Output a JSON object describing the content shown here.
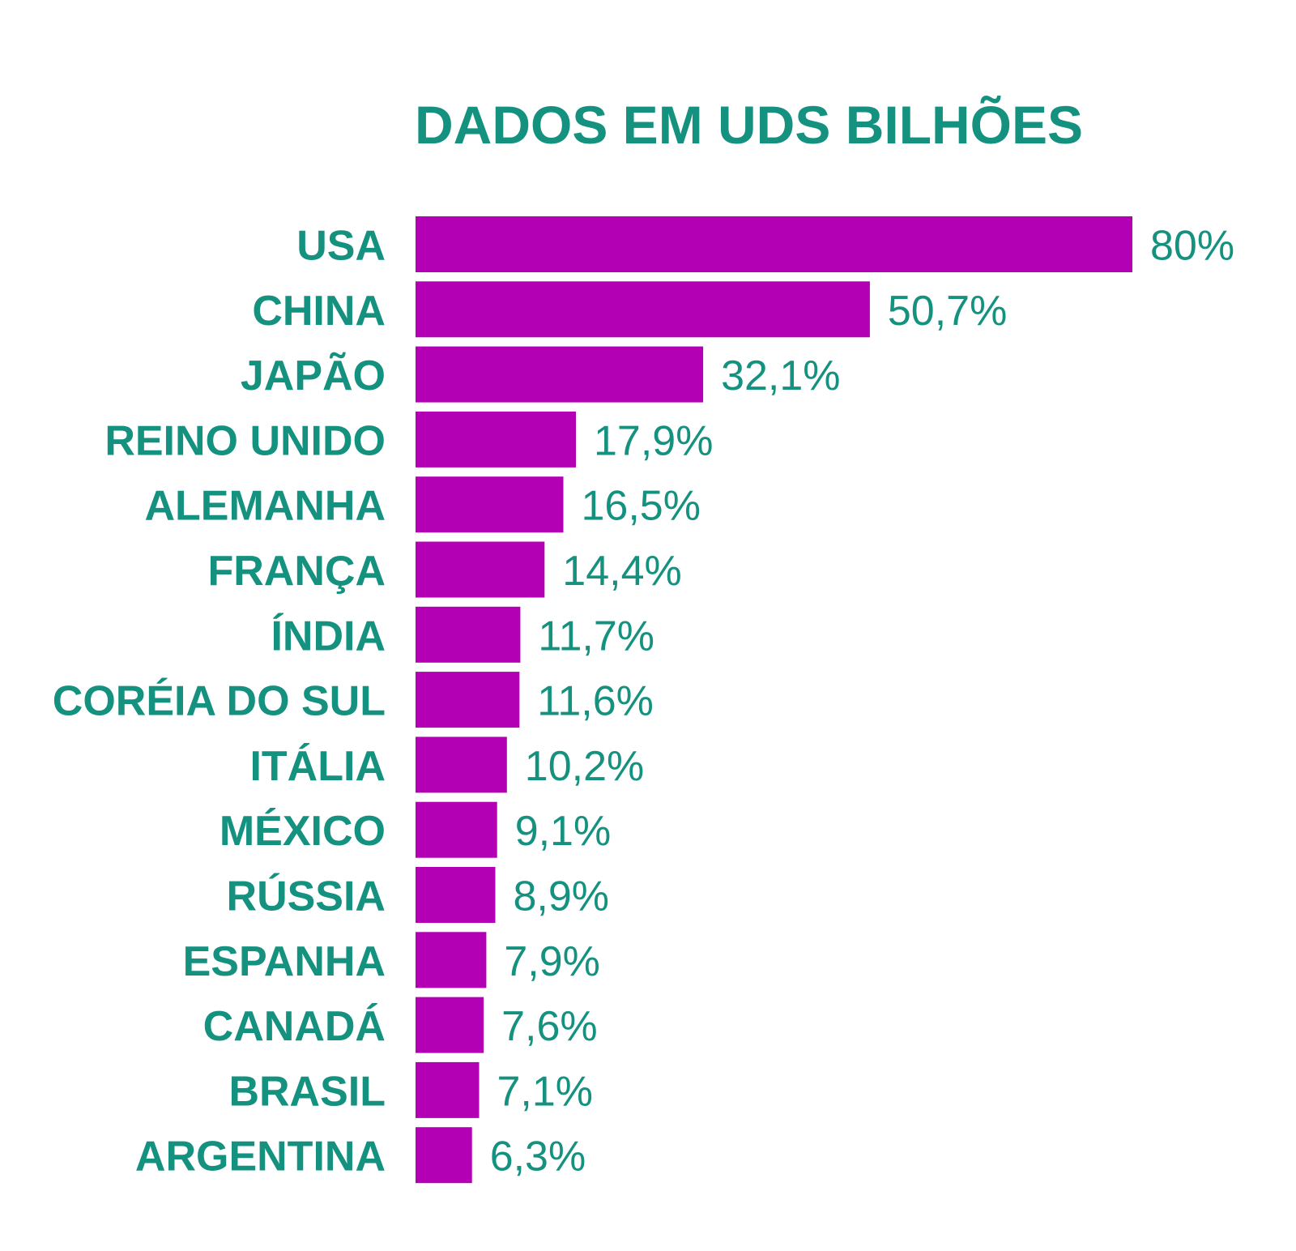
{
  "chart_data": {
    "type": "bar",
    "orientation": "horizontal",
    "title": "DADOS EM UDS BILHÕES",
    "categories": [
      "USA",
      "CHINA",
      "JAPÃO",
      "REINO UNIDO",
      "ALEMANHA",
      "FRANÇA",
      "ÍNDIA",
      "CORÉIA DO SUL",
      "ITÁLIA",
      "MÉXICO",
      "RÚSSIA",
      "ESPANHA",
      "CANADÁ",
      "BRASIL",
      "ARGENTINA"
    ],
    "values": [
      80,
      50.7,
      32.1,
      17.9,
      16.5,
      14.4,
      11.7,
      11.6,
      10.2,
      9.1,
      8.9,
      7.9,
      7.6,
      7.1,
      6.3
    ],
    "value_labels": [
      "80%",
      "50,7%",
      "32,1%",
      "17,9%",
      "16,5%",
      "14,4%",
      "11,7%",
      "11,6%",
      "10,2%",
      "9,1%",
      "8,9%",
      "7,9%",
      "7,6%",
      "7,1%",
      "6,3%"
    ],
    "xlabel": "",
    "ylabel": "",
    "xlim": [
      0,
      80
    ],
    "grid": false,
    "legend": "none"
  },
  "colors": {
    "bar": "#b400b4",
    "text": "#14917f",
    "background": "#ffffff"
  }
}
